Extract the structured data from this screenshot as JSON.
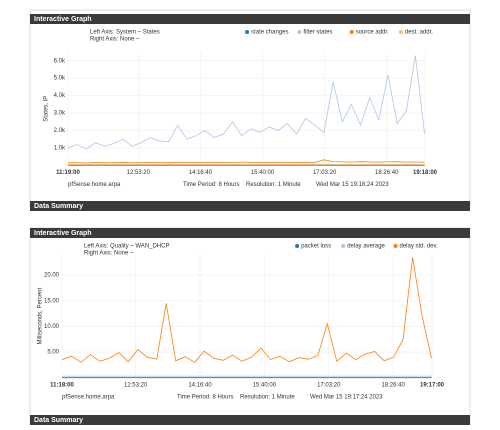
{
  "chart_data": [
    {
      "type": "line",
      "panel_title": "Interactive Graph",
      "left_axis": "Left Axis: System – States",
      "right_axis": "Right Axis: None –",
      "ylabel": "States, IP",
      "x": [
        40740,
        41476,
        42212,
        42948,
        43684,
        44420,
        45156,
        45892,
        46628,
        47364,
        48100,
        48836,
        49572,
        50308,
        51044,
        51780,
        52516,
        53252,
        53988,
        54724,
        55460,
        56196,
        56932,
        57668,
        58404,
        59140,
        59876,
        60612,
        61348,
        62084,
        62820,
        63556,
        64292,
        65028,
        65764,
        66500,
        67236,
        67972,
        68708,
        69444
      ],
      "xlim": [
        40740,
        69480
      ],
      "xticks": [
        {
          "value": 40740,
          "label": "11:19:00"
        },
        {
          "value": 46400,
          "label": "12:53:20"
        },
        {
          "value": 51400,
          "label": "14:16:40"
        },
        {
          "value": 56400,
          "label": "15:40:00"
        },
        {
          "value": 61400,
          "label": "17:03:20"
        },
        {
          "value": 66400,
          "label": "18:26:40"
        },
        {
          "value": 69480,
          "label": "19:18:00"
        }
      ],
      "ylim": [
        0,
        6500
      ],
      "yticks": [
        {
          "value": 1000,
          "label": "1.0k"
        },
        {
          "value": 2000,
          "label": "2.0k"
        },
        {
          "value": 3000,
          "label": "3.0k"
        },
        {
          "value": 4000,
          "label": "4.0k"
        },
        {
          "value": 5000,
          "label": "5.0k"
        },
        {
          "value": 6000,
          "label": "6.0k"
        }
      ],
      "grid": true,
      "series": [
        {
          "name": "state changes",
          "color": "#1f77b4",
          "values": [
            20,
            20,
            20,
            20,
            20,
            20,
            20,
            20,
            20,
            20,
            20,
            20,
            20,
            20,
            20,
            20,
            20,
            20,
            20,
            20,
            20,
            20,
            20,
            20,
            20,
            20,
            20,
            20,
            20,
            20,
            20,
            20,
            20,
            20,
            20,
            20,
            20,
            20,
            20,
            20
          ]
        },
        {
          "name": "filter states",
          "color": "#aec7e8",
          "values": [
            1000,
            1200,
            950,
            1300,
            1100,
            1250,
            1500,
            1100,
            1300,
            1600,
            1400,
            1350,
            2300,
            1500,
            1700,
            2000,
            1600,
            1800,
            2500,
            1700,
            2100,
            1900,
            2200,
            2000,
            2400,
            1800,
            2700,
            2300,
            1900,
            4800,
            2500,
            3500,
            2300,
            3900,
            2600,
            5200,
            2400,
            3100,
            6300,
            1800
          ]
        },
        {
          "name": "source addr.",
          "color": "#ff7f0e",
          "values": [
            150,
            160,
            140,
            170,
            150,
            160,
            180,
            150,
            160,
            170,
            160,
            150,
            180,
            170,
            160,
            170,
            180,
            160,
            170,
            190,
            170,
            160,
            170,
            180,
            170,
            160,
            180,
            170,
            320,
            220,
            200,
            190,
            210,
            200,
            190,
            200,
            210,
            190,
            200,
            180
          ]
        },
        {
          "name": "dest. addr.",
          "color": "#ffbb78",
          "values": [
            60,
            60,
            60,
            60,
            60,
            60,
            60,
            60,
            60,
            60,
            60,
            60,
            60,
            60,
            60,
            60,
            60,
            60,
            60,
            60,
            60,
            60,
            60,
            60,
            60,
            60,
            60,
            60,
            60,
            60,
            60,
            60,
            60,
            60,
            60,
            60,
            60,
            60,
            60,
            60
          ]
        }
      ],
      "host": "pfSense.home.arpa",
      "period": "Time Period: 8 Hours",
      "resolution": "Resolution: 1 Minute",
      "timestamp": "Wed Mar 15 19:18:24 2023",
      "summary_title": "Data Summary"
    },
    {
      "type": "line",
      "panel_title": "Interactive Graph",
      "left_axis": "Left Axis: Quality – WAN_DHCP",
      "right_axis": "Right Axis: None –",
      "ylabel": "Milliseconds, Percent",
      "x": [
        40680,
        41416,
        42152,
        42888,
        43624,
        44360,
        45096,
        45832,
        46568,
        47304,
        48040,
        48776,
        49512,
        50248,
        50984,
        51720,
        52456,
        53192,
        53928,
        54664,
        55400,
        56136,
        56872,
        57608,
        58344,
        59080,
        59816,
        60552,
        61288,
        62024,
        62760,
        63496,
        64232,
        64968,
        65704,
        66440,
        67176,
        67912,
        68648,
        69384
      ],
      "xlim": [
        40680,
        69420
      ],
      "xticks": [
        {
          "value": 40680,
          "label": "11:18:00"
        },
        {
          "value": 46400,
          "label": "12:53:20"
        },
        {
          "value": 51400,
          "label": "14:16:40"
        },
        {
          "value": 56400,
          "label": "15:40:00"
        },
        {
          "value": 61400,
          "label": "17:03:20"
        },
        {
          "value": 66400,
          "label": "18:26:40"
        },
        {
          "value": 69420,
          "label": "19:17:00"
        }
      ],
      "ylim": [
        0,
        24
      ],
      "yticks": [
        {
          "value": 5,
          "label": "5.00"
        },
        {
          "value": 10,
          "label": "10.00"
        },
        {
          "value": 15,
          "label": "15.00"
        },
        {
          "value": 20,
          "label": "20.00"
        }
      ],
      "grid": true,
      "series": [
        {
          "name": "packet loss",
          "color": "#1f77b4",
          "values": [
            0,
            0,
            0,
            0,
            0,
            0,
            0,
            0,
            0,
            0,
            0,
            0,
            0,
            0,
            0,
            0,
            0,
            0,
            0,
            0,
            0,
            0,
            0,
            0,
            0,
            0,
            0,
            0,
            0,
            0,
            0,
            0,
            0,
            0,
            0,
            0,
            0,
            0,
            0,
            0
          ]
        },
        {
          "name": "delay average",
          "color": "#aec7e8",
          "values": [
            0.3,
            0.3,
            0.3,
            0.3,
            0.3,
            0.3,
            0.3,
            0.3,
            0.3,
            0.3,
            0.3,
            0.3,
            0.3,
            0.3,
            0.3,
            0.3,
            0.3,
            0.3,
            0.3,
            0.3,
            0.3,
            0.3,
            0.3,
            0.3,
            0.3,
            0.3,
            0.3,
            0.3,
            0.3,
            0.3,
            0.3,
            0.3,
            0.3,
            0.3,
            0.3,
            0.3,
            0.3,
            0.3,
            0.3,
            0.3
          ]
        },
        {
          "name": "delay std. dev.",
          "color": "#ff7f0e",
          "values": [
            3.5,
            4.2,
            3.0,
            4.5,
            3.2,
            3.8,
            4.9,
            3.1,
            5.5,
            4.0,
            3.6,
            14.5,
            3.3,
            4.1,
            3.0,
            5.2,
            3.8,
            3.4,
            4.4,
            3.2,
            4.0,
            5.8,
            3.5,
            4.2,
            3.1,
            3.9,
            3.6,
            4.3,
            10.5,
            3.2,
            4.8,
            3.5,
            4.6,
            5.1,
            3.3,
            4.0,
            7.5,
            23.5,
            12.0,
            3.8
          ]
        }
      ],
      "host": "pfSense.home.arpa",
      "period": "Time Period: 8 Hours",
      "resolution": "Resolution: 1 Minute",
      "timestamp": "Wed Mar 15 19:17:24 2023",
      "summary_title": "Data Summary"
    }
  ]
}
